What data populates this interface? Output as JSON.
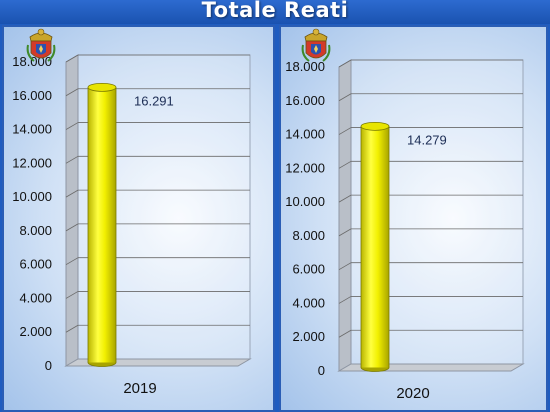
{
  "title": "Totale Reati",
  "colors": {
    "background": "#1f5cc0",
    "bar": "#f2f000",
    "bar_outline": "#7a7a00",
    "gridline": "#6a6a6a",
    "data_label": "#1c2d55"
  },
  "emblem_icon": "polizia-di-stato-crest-icon",
  "chart_data": [
    {
      "type": "bar",
      "style": "3d-cylinder",
      "title": "",
      "categories": [
        "2019"
      ],
      "values": [
        16291
      ],
      "data_labels": [
        "16.291"
      ],
      "ylim": [
        0,
        18000
      ],
      "yticks": [
        0,
        2000,
        4000,
        6000,
        8000,
        10000,
        12000,
        14000,
        16000,
        18000
      ],
      "ytick_labels": [
        "0",
        "2.000",
        "4.000",
        "6.000",
        "8.000",
        "10.000",
        "12.000",
        "14.000",
        "16.000",
        "18.000"
      ],
      "grid": true,
      "legend": "none"
    },
    {
      "type": "bar",
      "style": "3d-cylinder",
      "title": "",
      "categories": [
        "2020"
      ],
      "values": [
        14279
      ],
      "data_labels": [
        "14.279"
      ],
      "ylim": [
        0,
        18000
      ],
      "yticks": [
        0,
        2000,
        4000,
        6000,
        8000,
        10000,
        12000,
        14000,
        16000,
        18000
      ],
      "ytick_labels": [
        "0",
        "2.000",
        "4.000",
        "6.000",
        "8.000",
        "10.000",
        "12.000",
        "14.000",
        "16.000",
        "18.000"
      ],
      "grid": true,
      "legend": "none"
    }
  ]
}
